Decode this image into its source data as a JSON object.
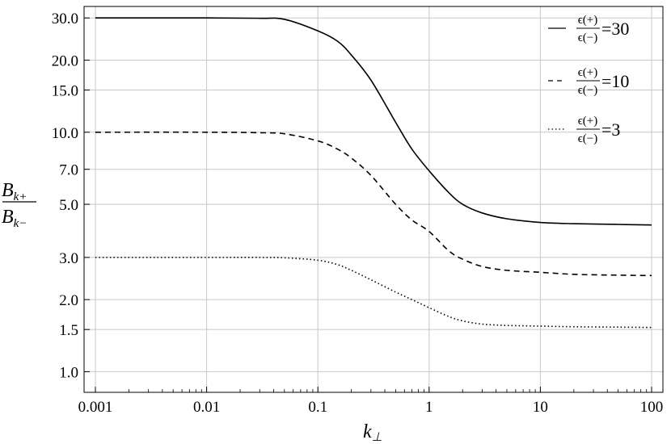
{
  "chart_data": {
    "type": "line",
    "x_scale": "log",
    "y_scale": "log",
    "xlim": [
      0.001,
      100
    ],
    "ylim": [
      0.9,
      31
    ],
    "grid": true,
    "legend_position": "top-right",
    "x_ticks": [
      0.001,
      0.01,
      0.1,
      1,
      10,
      100
    ],
    "x_tick_labels": [
      "0.001",
      "0.01",
      "0.1",
      "1",
      "10",
      "100"
    ],
    "y_ticks": [
      1,
      1.5,
      2,
      3,
      5,
      7,
      10,
      15,
      20,
      30
    ],
    "y_tick_labels": [
      "1.0",
      "1.5",
      "2.0",
      "3.0",
      "5.0",
      "7.0",
      "10.0",
      "15.0",
      "20.0",
      "30.0"
    ],
    "xlabel": {
      "main": "k",
      "sub": "⊥"
    },
    "ylabel": {
      "numerator": "B",
      "numerator_sub": "k+",
      "denominator": "B",
      "denominator_sub": "k−"
    },
    "series": [
      {
        "name": "ϵ(+)/ϵ(−)=30",
        "legend": {
          "frac_num": "ϵ(+)",
          "frac_den": "ϵ(−)",
          "suffix": "=30"
        },
        "style": "solid",
        "x": [
          0.001,
          0.01,
          0.03,
          0.05,
          0.1,
          0.15,
          0.2,
          0.3,
          0.5,
          0.7,
          1,
          1.5,
          2,
          3,
          5,
          10,
          20,
          50,
          100
        ],
        "y": [
          30,
          30,
          29.9,
          29.6,
          26.5,
          24,
          21,
          16.5,
          11,
          8.5,
          6.9,
          5.6,
          5.0,
          4.6,
          4.35,
          4.2,
          4.15,
          4.12,
          4.1
        ]
      },
      {
        "name": "ϵ(+)/ϵ(−)=10",
        "legend": {
          "frac_num": "ϵ(+)",
          "frac_den": "ϵ(−)",
          "suffix": "=10"
        },
        "style": "dashed",
        "x": [
          0.001,
          0.01,
          0.03,
          0.05,
          0.1,
          0.15,
          0.2,
          0.3,
          0.5,
          0.7,
          1,
          1.5,
          2,
          3,
          5,
          10,
          20,
          50,
          100
        ],
        "y": [
          10,
          10,
          9.95,
          9.85,
          9.2,
          8.5,
          7.8,
          6.6,
          5.0,
          4.3,
          3.85,
          3.2,
          2.95,
          2.75,
          2.65,
          2.6,
          2.55,
          2.53,
          2.52
        ]
      },
      {
        "name": "ϵ(+)/ϵ(−)=3",
        "legend": {
          "frac_num": "ϵ(+)",
          "frac_den": "ϵ(−)",
          "suffix": "=3"
        },
        "style": "dotted",
        "x": [
          0.001,
          0.01,
          0.03,
          0.05,
          0.1,
          0.15,
          0.2,
          0.3,
          0.5,
          0.7,
          1,
          1.5,
          2,
          3,
          5,
          10,
          20,
          50,
          100
        ],
        "y": [
          3,
          3,
          3,
          2.99,
          2.92,
          2.8,
          2.65,
          2.42,
          2.15,
          2.0,
          1.85,
          1.7,
          1.63,
          1.58,
          1.56,
          1.55,
          1.54,
          1.535,
          1.53
        ]
      }
    ]
  }
}
